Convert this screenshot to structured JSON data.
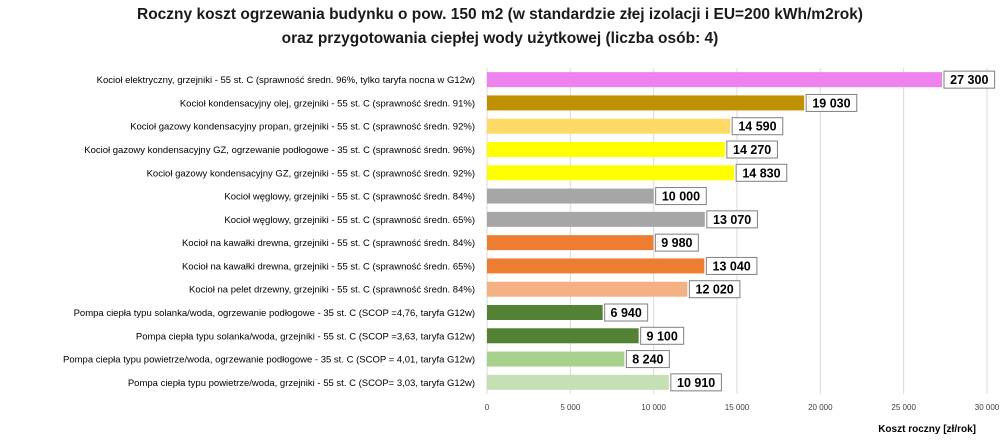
{
  "chart_data": {
    "type": "bar",
    "orientation": "horizontal",
    "title": [
      "Roczny koszt ogrzewania budynku  o pow. 150 m2 (w standardzie złej izolacji i EU=200 kWh/m2rok)",
      "oraz przygotowania ciepłej wody użytkowej (liczba osób: 4)"
    ],
    "xlabel": "Koszt roczny [zł/rok]",
    "ylabel": "",
    "xlim": [
      0,
      30000
    ],
    "xticks": [
      0,
      5000,
      10000,
      15000,
      20000,
      25000,
      30000
    ],
    "xtick_labels": [
      "0",
      "5 000",
      "10 000",
      "15 000",
      "20 000",
      "25 000",
      "30 000"
    ],
    "grid": true,
    "legend": "none",
    "categories": [
      "Kocioł  elektryczny,  grzejniki - 55 st. C  (sprawność średn. 96%, tylko taryfa nocna w G12w)",
      "Kocioł  kondensacyjny olej,  grzejniki - 55 st. C (sprawność średn. 91%)",
      "Kocioł gazowy kondensacyjny propan, grzejniki - 55 st. C (sprawność średn. 92%)",
      "Kocioł gazowy kondensacyjny GZ, ogrzewanie podłogowe - 35 st. C (sprawność średn. 96%)",
      "Kocioł gazowy kondensacyjny GZ, grzejniki - 55 st. C (sprawność średn. 92%)",
      "Kocioł węglowy,  grzejniki - 55 st. C (sprawność średn. 84%)",
      "Kocioł węglowy,  grzejniki - 55 st. C (sprawność średn. 65%)",
      "Kocioł na kawałki drewna, grzejniki - 55 st. C (sprawność średn. 84%)",
      "Kocioł na kawałki drewna, grzejniki - 55 st. C (sprawność średn. 65%)",
      "Kocioł na pelet drzewny, grzejniki - 55 st. C (sprawność średn. 84%)",
      "Pompa ciepła typu solanka/woda, ogrzewanie podłogowe - 35 st. C (SCOP =4,76, taryfa G12w)",
      "Pompa ciepła typu solanka/woda, grzejniki - 55 st. C (SCOP =3,63, taryfa G12w)",
      "Pompa ciepła typu powietrze/woda, ogrzewanie podłogowe - 35 st. C (SCOP = 4,01, taryfa G12w)",
      "Pompa ciepła typu powietrze/woda, grzejniki - 55 st. C (SCOP= 3,03, taryfa G12w)"
    ],
    "values": [
      27300,
      19030,
      14590,
      14270,
      14830,
      10000,
      13070,
      9980,
      13040,
      12020,
      6940,
      9100,
      8240,
      10910
    ],
    "value_labels": [
      "27 300",
      "19 030",
      "14 590",
      "14 270",
      "14 830",
      "10 000",
      "13 070",
      "9 980",
      "13 040",
      "12 020",
      "6 940",
      "9 100",
      "8 240",
      "10 910"
    ],
    "colors": [
      "#ee82ee",
      "#bf9000",
      "#ffd966",
      "#ffff00",
      "#ffff00",
      "#a6a6a6",
      "#a6a6a6",
      "#ed7d31",
      "#ed7d31",
      "#f4b183",
      "#548235",
      "#548235",
      "#a9d18e",
      "#c5e0b4"
    ]
  }
}
